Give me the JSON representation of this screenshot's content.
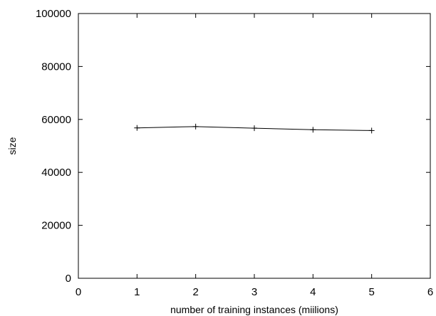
{
  "chart_data": {
    "type": "line",
    "title": "",
    "xlabel": "number of training instances (miilions)",
    "ylabel": "size",
    "xlim": [
      0,
      6
    ],
    "ylim": [
      0,
      100000
    ],
    "xticks": [
      0,
      1,
      2,
      3,
      4,
      5,
      6
    ],
    "yticks": [
      0,
      20000,
      40000,
      60000,
      80000,
      100000
    ],
    "grid": false,
    "legend": "none",
    "colors": {
      "line": "#000000",
      "axis": "#000000",
      "background": "#ffffff"
    },
    "series": [
      {
        "x": [
          1,
          2,
          3,
          4,
          5
        ],
        "y": [
          56800,
          57300,
          56700,
          56100,
          55800
        ],
        "marker": "plus"
      }
    ]
  }
}
